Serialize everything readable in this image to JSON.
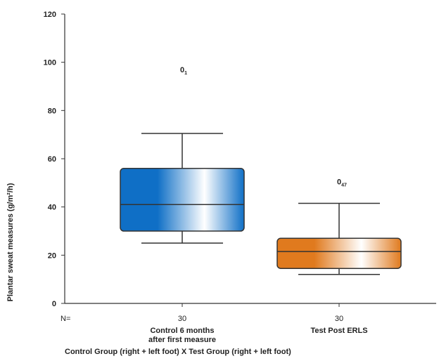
{
  "chart_data": {
    "type": "box",
    "ylabel": "Plantar sweat measures (g/m²/h)",
    "ylim": [
      0,
      120
    ],
    "yticks": [
      0,
      20,
      40,
      60,
      80,
      100,
      120
    ],
    "n_prefix": "N=",
    "grid": false,
    "series": [
      {
        "category_lines": [
          "Control 6 months",
          "after first measure"
        ],
        "n": "30",
        "whisker_low": 25,
        "q1": 30,
        "median": 41,
        "q3": 56,
        "whisker_high": 70.5,
        "outlier": {
          "value": 97,
          "label_main": "0",
          "label_sub": "1"
        },
        "gradient": {
          "dark": "#0f6fc6",
          "light": "#ffffff"
        }
      },
      {
        "category_lines": [
          "Test Post ERLS"
        ],
        "n": "30",
        "whisker_low": 12,
        "q1": 14.5,
        "median": 21.5,
        "q3": 27,
        "whisker_high": 41.5,
        "outlier": {
          "value": 50.5,
          "label_main": "0",
          "label_sub": "47"
        },
        "gradient": {
          "dark": "#e07a1e",
          "light": "#ffffff"
        }
      }
    ],
    "footer": "Control Group (right + left foot) X Test Group (right + left foot)"
  }
}
